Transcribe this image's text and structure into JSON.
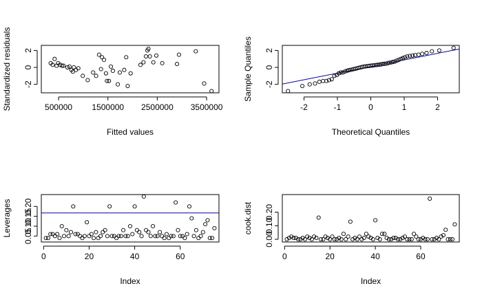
{
  "chart_data": [
    {
      "type": "scatter",
      "xlabel": "Fitted values",
      "ylabel": "Standardized residuals",
      "xlim": [
        150000,
        3750000
      ],
      "ylim": [
        -3.0,
        2.6
      ],
      "xticks": [
        500000,
        1500000,
        2500000,
        3500000
      ],
      "xtick_labels": [
        "500000",
        "1500000",
        "2500000",
        "3500000"
      ],
      "yticks": [
        -2,
        0,
        2
      ],
      "ytick_labels": [
        "-2",
        "0",
        "2"
      ],
      "points": [
        [
          340000,
          0.5
        ],
        [
          380000,
          0.3
        ],
        [
          420000,
          1.0
        ],
        [
          460000,
          0.2
        ],
        [
          490000,
          0.5
        ],
        [
          530000,
          0.3
        ],
        [
          570000,
          0.2
        ],
        [
          600000,
          0.2
        ],
        [
          680000,
          0.0
        ],
        [
          720000,
          0.1
        ],
        [
          760000,
          -0.3
        ],
        [
          790000,
          -0.5
        ],
        [
          810000,
          0.0
        ],
        [
          850000,
          -0.3
        ],
        [
          900000,
          -0.1
        ],
        [
          990000,
          -1.0
        ],
        [
          1090000,
          -1.5
        ],
        [
          1200000,
          -0.6
        ],
        [
          1260000,
          -1.0
        ],
        [
          1320000,
          1.5
        ],
        [
          1360000,
          -0.2
        ],
        [
          1380000,
          1.2
        ],
        [
          1420000,
          0.9
        ],
        [
          1460000,
          -0.7
        ],
        [
          1480000,
          -1.6
        ],
        [
          1520000,
          -1.6
        ],
        [
          1560000,
          0.1
        ],
        [
          1600000,
          -0.4
        ],
        [
          1700000,
          -2.0
        ],
        [
          1740000,
          -0.6
        ],
        [
          1830000,
          -0.3
        ],
        [
          1870000,
          1.2
        ],
        [
          1900000,
          -2.2
        ],
        [
          1960000,
          -0.7
        ],
        [
          2160000,
          0.3
        ],
        [
          2220000,
          0.6
        ],
        [
          2270000,
          1.3
        ],
        [
          2300000,
          2.0
        ],
        [
          2320000,
          2.2
        ],
        [
          2350000,
          1.3
        ],
        [
          2420000,
          0.6
        ],
        [
          2480000,
          1.4
        ],
        [
          2600000,
          0.5
        ],
        [
          2900000,
          0.4
        ],
        [
          2940000,
          1.5
        ],
        [
          3280000,
          1.9
        ],
        [
          3450000,
          -1.9
        ],
        [
          3600000,
          -2.8
        ]
      ]
    },
    {
      "type": "scatter",
      "xlabel": "Theoretical Quantiles",
      "ylabel": "Sample Quantiles",
      "xlim": [
        -2.65,
        2.65
      ],
      "ylim": [
        -3.0,
        2.6
      ],
      "xticks": [
        -2,
        -1,
        0,
        1,
        2
      ],
      "xtick_labels": [
        "-2",
        "-1",
        "0",
        "1",
        "2"
      ],
      "yticks": [
        -2,
        0,
        2
      ],
      "ytick_labels": [
        "-2",
        "0",
        "2"
      ],
      "line": {
        "intercept": 0.1,
        "slope": 0.78
      },
      "line_color": "#0000aa",
      "points": [
        [
          -2.48,
          -2.8
        ],
        [
          -2.05,
          -2.2
        ],
        [
          -1.83,
          -2.0
        ],
        [
          -1.67,
          -1.9
        ],
        [
          -1.54,
          -1.7
        ],
        [
          -1.43,
          -1.6
        ],
        [
          -1.33,
          -1.6
        ],
        [
          -1.25,
          -1.5
        ],
        [
          -1.17,
          -1.4
        ],
        [
          -1.09,
          -1.0
        ],
        [
          -1.02,
          -0.9
        ],
        [
          -0.96,
          -0.7
        ],
        [
          -0.9,
          -0.6
        ],
        [
          -0.84,
          -0.6
        ],
        [
          -0.78,
          -0.5
        ],
        [
          -0.72,
          -0.4
        ],
        [
          -0.67,
          -0.35
        ],
        [
          -0.62,
          -0.3
        ],
        [
          -0.56,
          -0.25
        ],
        [
          -0.51,
          -0.2
        ],
        [
          -0.46,
          -0.15
        ],
        [
          -0.41,
          -0.1
        ],
        [
          -0.36,
          -0.05
        ],
        [
          -0.31,
          0.0
        ],
        [
          -0.26,
          0.05
        ],
        [
          -0.21,
          0.1
        ],
        [
          -0.16,
          0.12
        ],
        [
          -0.1,
          0.15
        ],
        [
          -0.05,
          0.18
        ],
        [
          0.0,
          0.2
        ],
        [
          0.05,
          0.22
        ],
        [
          0.1,
          0.25
        ],
        [
          0.16,
          0.28
        ],
        [
          0.21,
          0.3
        ],
        [
          0.26,
          0.33
        ],
        [
          0.31,
          0.35
        ],
        [
          0.36,
          0.4
        ],
        [
          0.41,
          0.42
        ],
        [
          0.46,
          0.45
        ],
        [
          0.51,
          0.5
        ],
        [
          0.56,
          0.55
        ],
        [
          0.62,
          0.6
        ],
        [
          0.67,
          0.65
        ],
        [
          0.72,
          0.7
        ],
        [
          0.78,
          0.8
        ],
        [
          0.84,
          0.9
        ],
        [
          0.9,
          1.0
        ],
        [
          0.96,
          1.1
        ],
        [
          1.02,
          1.2
        ],
        [
          1.09,
          1.3
        ],
        [
          1.17,
          1.35
        ],
        [
          1.25,
          1.4
        ],
        [
          1.33,
          1.45
        ],
        [
          1.43,
          1.5
        ],
        [
          1.54,
          1.6
        ],
        [
          1.67,
          1.7
        ],
        [
          1.83,
          1.9
        ],
        [
          2.05,
          2.0
        ],
        [
          2.48,
          2.3
        ]
      ]
    },
    {
      "type": "scatter",
      "xlabel": "Index",
      "ylabel": "Leverages",
      "xlim": [
        -1,
        77
      ],
      "ylim": [
        0.02,
        0.26
      ],
      "xticks": [
        0,
        20,
        40,
        60
      ],
      "xtick_labels": [
        "0",
        "20",
        "40",
        "60"
      ],
      "yticks": [
        0.05,
        0.1,
        0.15,
        0.2
      ],
      "ytick_labels": [
        "0.05",
        "0.10",
        "0.15",
        "0.20"
      ],
      "hline": 0.167,
      "hline_color": "#0000aa",
      "points": [
        [
          1,
          0.04
        ],
        [
          2,
          0.04
        ],
        [
          3,
          0.06
        ],
        [
          4,
          0.06
        ],
        [
          5,
          0.05
        ],
        [
          6,
          0.06
        ],
        [
          7,
          0.04
        ],
        [
          8,
          0.1
        ],
        [
          9,
          0.05
        ],
        [
          10,
          0.08
        ],
        [
          11,
          0.05
        ],
        [
          12,
          0.07
        ],
        [
          13,
          0.2
        ],
        [
          14,
          0.06
        ],
        [
          15,
          0.06
        ],
        [
          16,
          0.05
        ],
        [
          17,
          0.04
        ],
        [
          18,
          0.05
        ],
        [
          19,
          0.12
        ],
        [
          20,
          0.05
        ],
        [
          21,
          0.06
        ],
        [
          22,
          0.04
        ],
        [
          23,
          0.07
        ],
        [
          24,
          0.04
        ],
        [
          25,
          0.05
        ],
        [
          26,
          0.07
        ],
        [
          27,
          0.08
        ],
        [
          28,
          0.05
        ],
        [
          29,
          0.2
        ],
        [
          30,
          0.05
        ],
        [
          31,
          0.05
        ],
        [
          32,
          0.04
        ],
        [
          33,
          0.05
        ],
        [
          34,
          0.05
        ],
        [
          35,
          0.08
        ],
        [
          36,
          0.05
        ],
        [
          37,
          0.05
        ],
        [
          38,
          0.1
        ],
        [
          39,
          0.06
        ],
        [
          40,
          0.2
        ],
        [
          41,
          0.08
        ],
        [
          42,
          0.07
        ],
        [
          43,
          0.05
        ],
        [
          44,
          0.25
        ],
        [
          45,
          0.08
        ],
        [
          46,
          0.07
        ],
        [
          47,
          0.05
        ],
        [
          48,
          0.1
        ],
        [
          49,
          0.05
        ],
        [
          50,
          0.05
        ],
        [
          51,
          0.07
        ],
        [
          52,
          0.05
        ],
        [
          53,
          0.04
        ],
        [
          54,
          0.06
        ],
        [
          55,
          0.04
        ],
        [
          56,
          0.05
        ],
        [
          57,
          0.05
        ],
        [
          58,
          0.22
        ],
        [
          59,
          0.08
        ],
        [
          60,
          0.05
        ],
        [
          61,
          0.05
        ],
        [
          62,
          0.04
        ],
        [
          63,
          0.06
        ],
        [
          64,
          0.2
        ],
        [
          65,
          0.14
        ],
        [
          66,
          0.05
        ],
        [
          67,
          0.08
        ],
        [
          68,
          0.04
        ],
        [
          69,
          0.05
        ],
        [
          70,
          0.07
        ],
        [
          71,
          0.11
        ],
        [
          72,
          0.13
        ],
        [
          73,
          0.04
        ],
        [
          74,
          0.04
        ],
        [
          75,
          0.09
        ]
      ]
    },
    {
      "type": "scatter",
      "xlabel": "Index",
      "ylabel": "cook.dist",
      "xlim": [
        -1,
        77
      ],
      "ylim": [
        -0.02,
        0.33
      ],
      "xticks": [
        0,
        20,
        40,
        60
      ],
      "xtick_labels": [
        "0",
        "20",
        "40",
        "60"
      ],
      "yticks": [
        0.0,
        0.1,
        0.2
      ],
      "ytick_labels": [
        "0.00",
        "0.10",
        "0.20"
      ],
      "points": [
        [
          1,
          0.0
        ],
        [
          2,
          0.01
        ],
        [
          3,
          0.02
        ],
        [
          4,
          0.01
        ],
        [
          5,
          0.01
        ],
        [
          6,
          0.0
        ],
        [
          7,
          0.0
        ],
        [
          8,
          0.01
        ],
        [
          9,
          0.0
        ],
        [
          10,
          0.02
        ],
        [
          11,
          0.01
        ],
        [
          12,
          0.0
        ],
        [
          13,
          0.02
        ],
        [
          14,
          0.01
        ],
        [
          15,
          0.16
        ],
        [
          16,
          0.0
        ],
        [
          17,
          0.0
        ],
        [
          18,
          0.02
        ],
        [
          19,
          0.01
        ],
        [
          20,
          0.0
        ],
        [
          21,
          0.02
        ],
        [
          22,
          0.0
        ],
        [
          23,
          0.0
        ],
        [
          24,
          0.01
        ],
        [
          25,
          0.0
        ],
        [
          26,
          0.04
        ],
        [
          27,
          0.0
        ],
        [
          28,
          0.02
        ],
        [
          29,
          0.13
        ],
        [
          30,
          0.0
        ],
        [
          31,
          0.01
        ],
        [
          32,
          0.0
        ],
        [
          33,
          0.02
        ],
        [
          34,
          0.0
        ],
        [
          35,
          0.01
        ],
        [
          36,
          0.04
        ],
        [
          37,
          0.02
        ],
        [
          38,
          0.01
        ],
        [
          39,
          0.0
        ],
        [
          40,
          0.14
        ],
        [
          41,
          0.01
        ],
        [
          42,
          0.0
        ],
        [
          43,
          0.04
        ],
        [
          44,
          0.04
        ],
        [
          45,
          0.01
        ],
        [
          46,
          0.0
        ],
        [
          47,
          0.0
        ],
        [
          48,
          0.01
        ],
        [
          49,
          0.01
        ],
        [
          50,
          0.0
        ],
        [
          51,
          0.0
        ],
        [
          52,
          0.01
        ],
        [
          53,
          0.02
        ],
        [
          54,
          0.0
        ],
        [
          55,
          0.0
        ],
        [
          56,
          0.0
        ],
        [
          57,
          0.04
        ],
        [
          58,
          0.02
        ],
        [
          59,
          0.0
        ],
        [
          60,
          0.0
        ],
        [
          61,
          0.01
        ],
        [
          62,
          0.0
        ],
        [
          63,
          0.0
        ],
        [
          64,
          0.3
        ],
        [
          65,
          0.0
        ],
        [
          66,
          0.0
        ],
        [
          67,
          0.01
        ],
        [
          68,
          0.0
        ],
        [
          69,
          0.02
        ],
        [
          70,
          0.03
        ],
        [
          71,
          0.07
        ],
        [
          72,
          0.0
        ],
        [
          73,
          0.0
        ],
        [
          74,
          0.0
        ],
        [
          75,
          0.11
        ]
      ]
    }
  ]
}
